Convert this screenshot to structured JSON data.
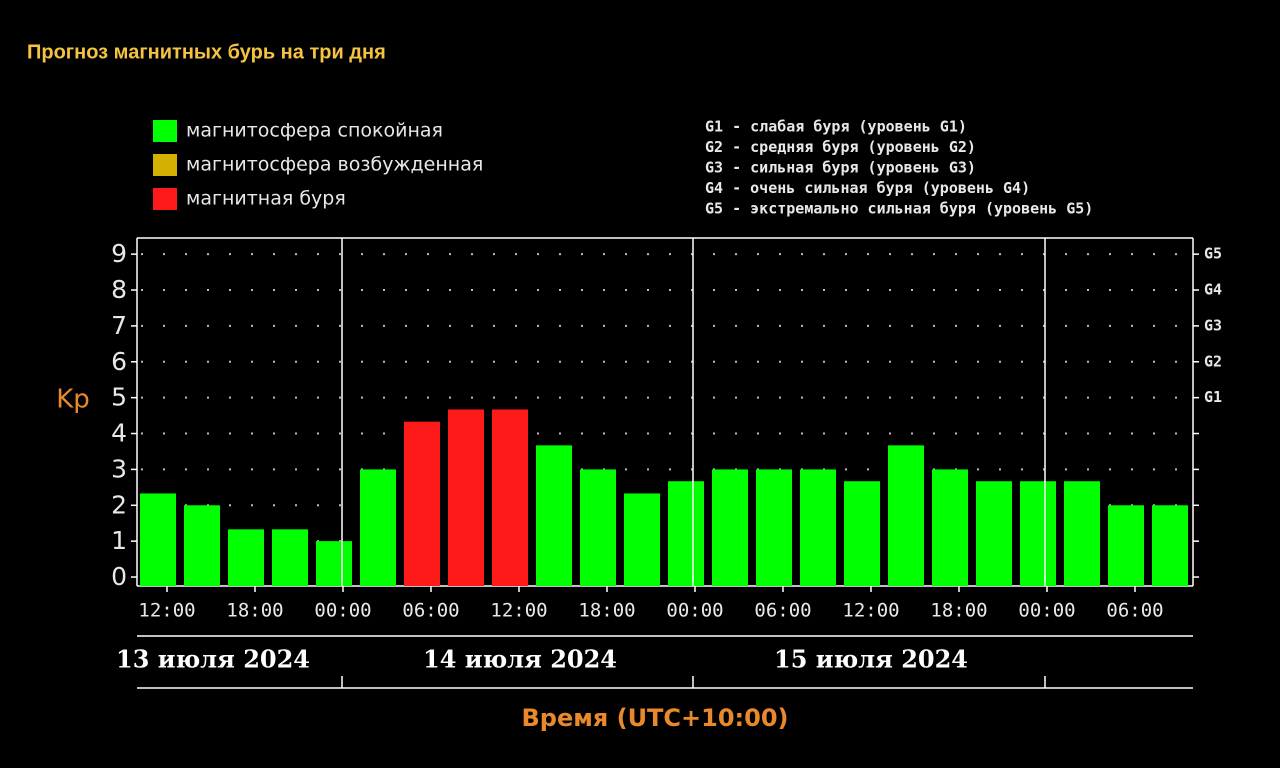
{
  "chart_data": {
    "type": "bar",
    "title": "Прогноз магнитных бурь на три дня",
    "legend": [
      {
        "label": "магнитосфера спокойная",
        "color": "#00ff00"
      },
      {
        "label": "магнитосфера возбужденная",
        "color": "#d4b000"
      },
      {
        "label": "магнитная буря",
        "color": "#ff1a1a"
      }
    ],
    "g_legend": [
      "G1 - слабая буря (уровень G1)",
      "G2 - средняя буря (уровень G2)",
      "G3 - сильная буря (уровень G3)",
      "G4 - очень сильная буря (уровень G4)",
      "G5 - экстремально сильная буря (уровень G5)"
    ],
    "y_label": "Kp",
    "x_label": "Время (UTC+10:00)",
    "xtick_labels": [
      "12:00",
      "18:00",
      "00:00",
      "06:00",
      "12:00",
      "18:00",
      "00:00",
      "06:00",
      "12:00",
      "18:00",
      "00:00",
      "06:00"
    ],
    "day_labels": [
      "13 июля 2024",
      "14 июля 2024",
      "15 июля 2024"
    ],
    "values": [
      2.33,
      2,
      1.33,
      1.33,
      1,
      3,
      4.33,
      4.67,
      4.67,
      3.67,
      3,
      2.33,
      2.67,
      3,
      3,
      3,
      2.67,
      3.67,
      3,
      2.67,
      2.67,
      2.67,
      2,
      2
    ],
    "colors": [
      "#00ff00",
      "#00ff00",
      "#00ff00",
      "#00ff00",
      "#00ff00",
      "#00ff00",
      "#ff1a1a",
      "#ff1a1a",
      "#ff1a1a",
      "#00ff00",
      "#00ff00",
      "#00ff00",
      "#00ff00",
      "#00ff00",
      "#00ff00",
      "#00ff00",
      "#00ff00",
      "#00ff00",
      "#00ff00",
      "#00ff00",
      "#00ff00",
      "#00ff00",
      "#00ff00",
      "#00ff00"
    ],
    "ylim": [
      -0.25,
      9.45
    ],
    "yticks": [
      0,
      1,
      2,
      3,
      4,
      5,
      6,
      7,
      8,
      9
    ],
    "y2ticks": [
      {
        "value": 5,
        "label": "G1"
      },
      {
        "value": 6,
        "label": "G2"
      },
      {
        "value": 7,
        "label": "G3"
      },
      {
        "value": 8,
        "label": "G4"
      },
      {
        "value": 9,
        "label": "G5"
      }
    ],
    "grid": true
  }
}
